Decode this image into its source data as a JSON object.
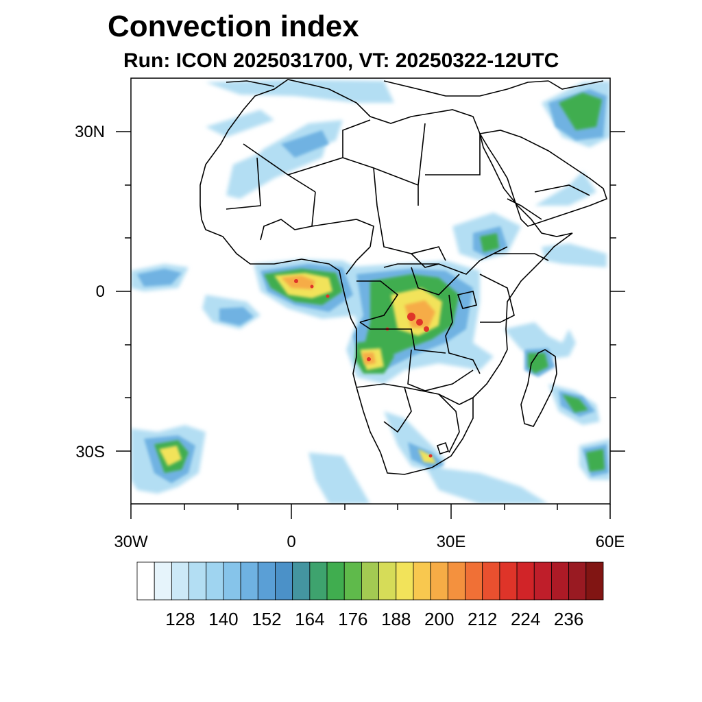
{
  "title": "Convection index",
  "subtitle": "Run: ICON 2025031700,  VT: 20250322-12UTC",
  "axes": {
    "lat_labels": [
      "30N",
      "0",
      "30S"
    ],
    "lon_labels": [
      "30W",
      "0",
      "30E",
      "60E"
    ]
  },
  "colorbar": {
    "labels": [
      "128",
      "140",
      "152",
      "164",
      "176",
      "188",
      "200",
      "212",
      "224",
      "236"
    ],
    "colors": [
      "#ffffff",
      "#e6f4fb",
      "#cce9f7",
      "#b3def3",
      "#9fd4f0",
      "#86c4ea",
      "#6fb2e2",
      "#5a9fd6",
      "#4b91c8",
      "#4495a0",
      "#3ea36e",
      "#40ad4f",
      "#5fba4b",
      "#a3ca52",
      "#d6dc58",
      "#f2e35a",
      "#f8c84f",
      "#f6ac46",
      "#f4913e",
      "#f07036",
      "#e9502f",
      "#df3429",
      "#d12428",
      "#bf1e2a",
      "#ad1a26",
      "#991a22",
      "#811513"
    ]
  },
  "map": {
    "lon_range": [
      -30,
      60
    ],
    "lat_range": [
      -40,
      40
    ]
  }
}
